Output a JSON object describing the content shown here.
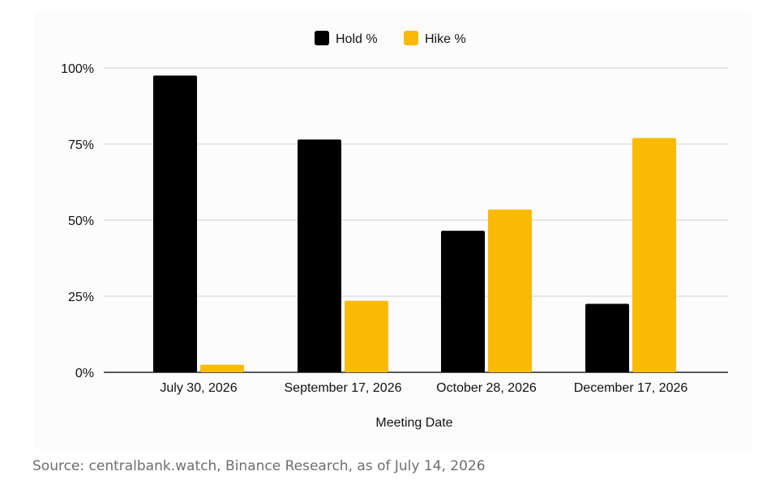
{
  "chart_data": {
    "type": "bar",
    "categories": [
      "July 30, 2026",
      "September 17, 2026",
      "October 28, 2026",
      "December 17, 2026"
    ],
    "series": [
      {
        "name": "Hold %",
        "color": "#000000",
        "values": [
          97.5,
          76.5,
          46.5,
          22.5
        ]
      },
      {
        "name": "Hike %",
        "color": "#FABA03",
        "values": [
          2.5,
          23.5,
          53.5,
          77.0
        ]
      }
    ],
    "y_ticks": [
      "0%",
      "25%",
      "50%",
      "75%",
      "100%"
    ],
    "y_tick_values": [
      0,
      25,
      50,
      75,
      100
    ],
    "ylim": [
      0,
      100
    ],
    "xlabel": "Meeting Date",
    "ylabel": "",
    "grid": true,
    "legend_position": "top"
  },
  "source_note": "Source: centralbank.watch, Binance Research, as of July 14, 2026"
}
